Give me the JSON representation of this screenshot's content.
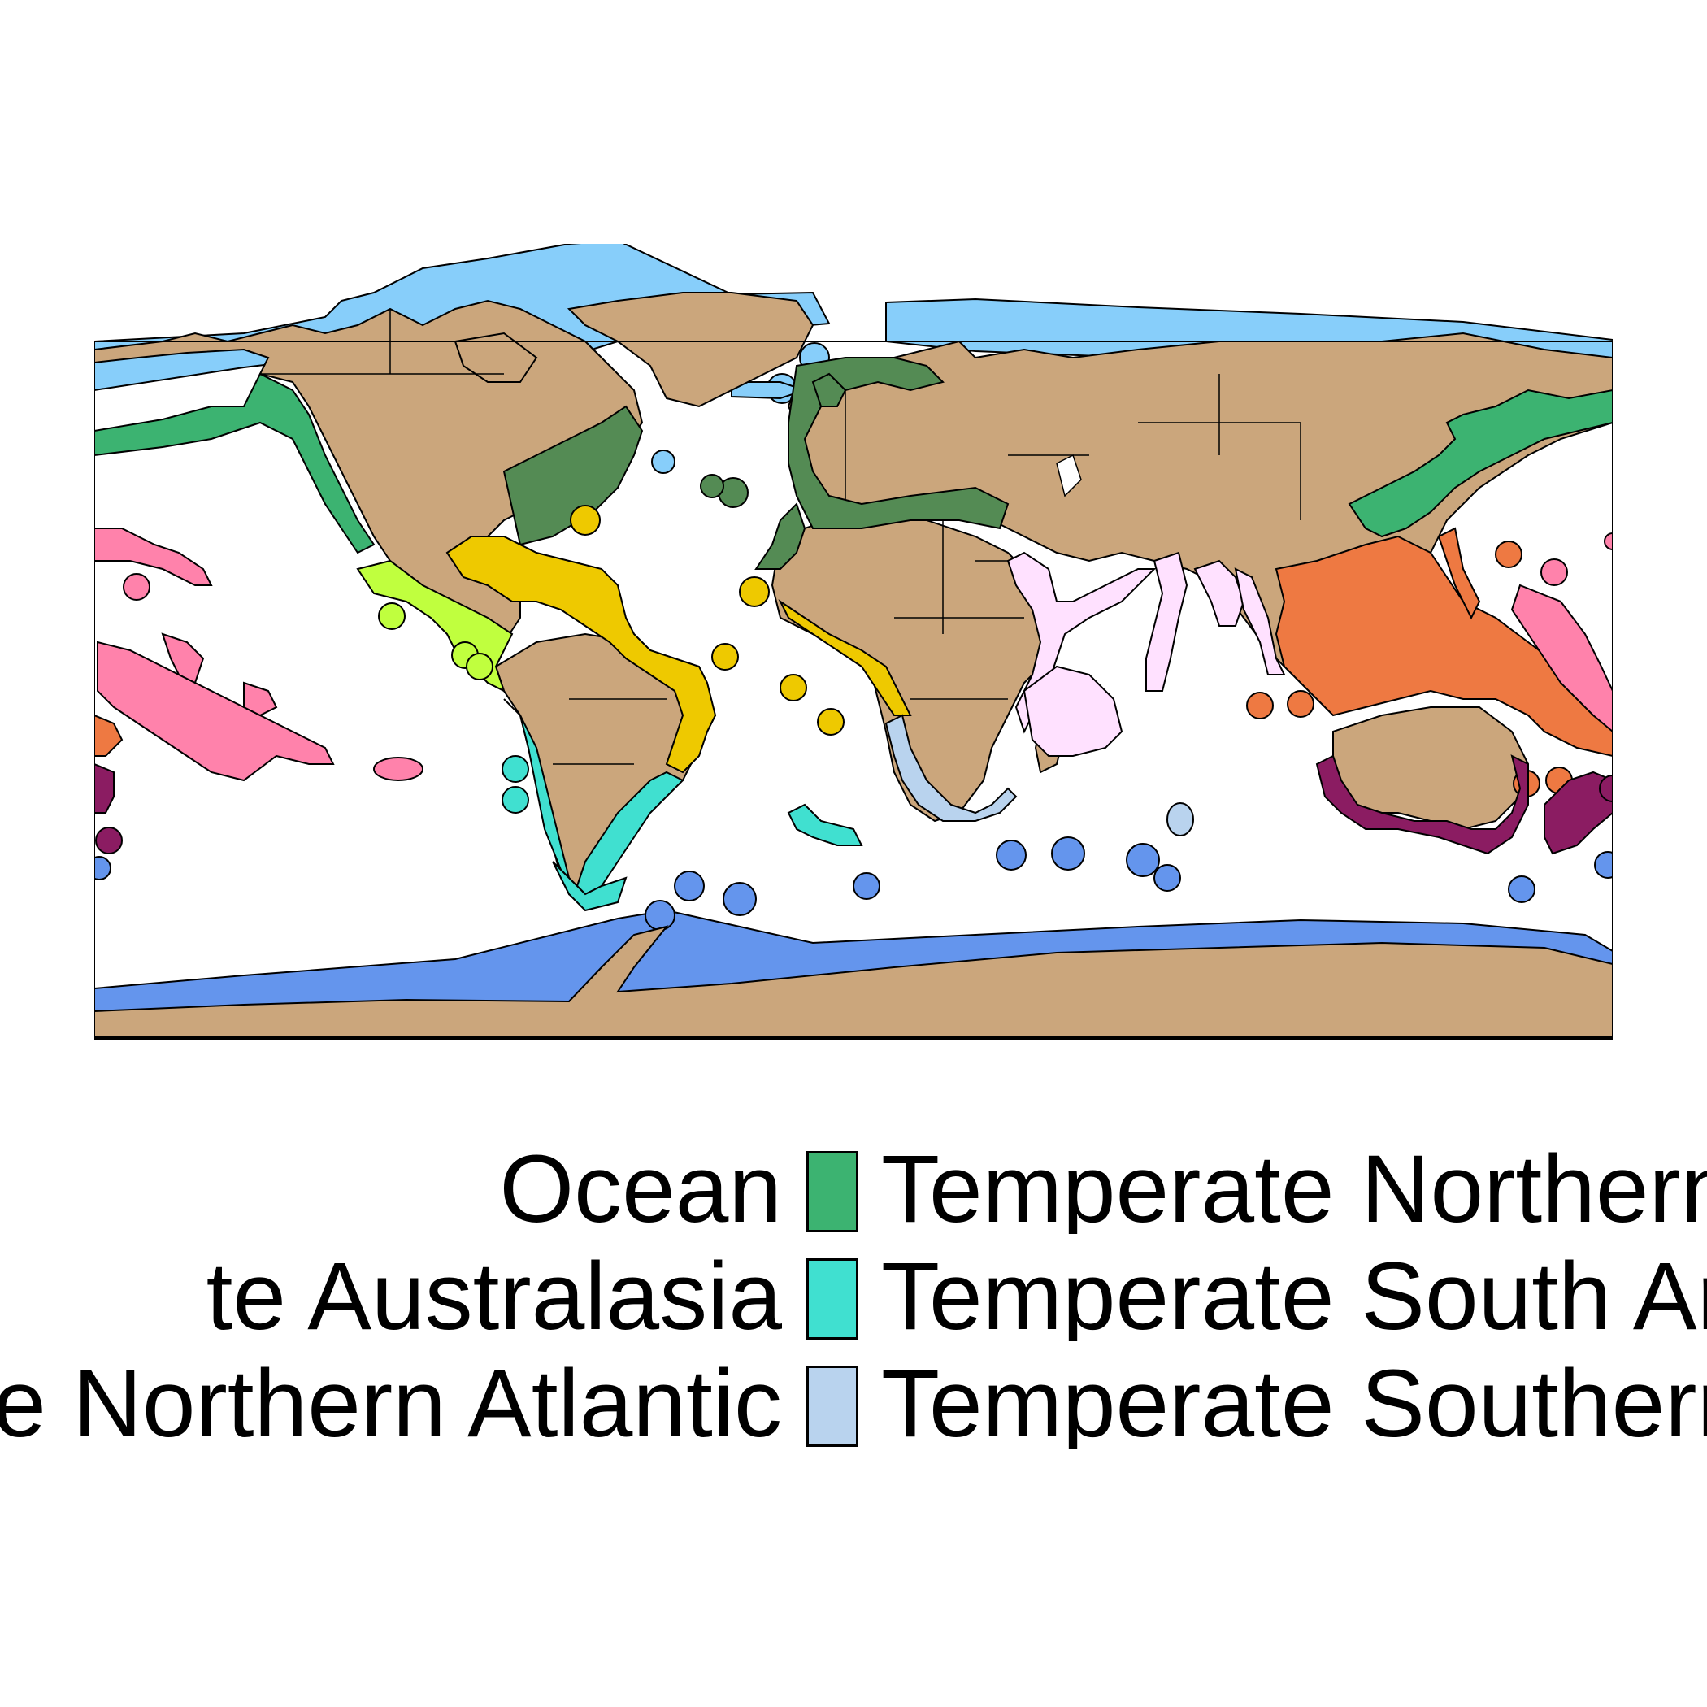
{
  "map": {
    "frame": "equirectangular world map",
    "colors": {
      "land": "#cba67c",
      "arctic": "#87cefa",
      "southern_ocean": "#6495ed",
      "temperate_northern_pacific": "#3cb371",
      "temperate_northern_atlantic": "#548b54",
      "tropical_atlantic": "#eec900",
      "tropical_eastern_pacific": "#c0ff3e",
      "central_indo_pacific": "#ee7942",
      "eastern_indo_pacific": "#ff82ab",
      "temperate_australasia": "#8b1c62",
      "western_indo_pacific": "#ffe1ff",
      "temperate_south_america": "#40e0d0",
      "temperate_southern_africa": "#b9d3ee",
      "inland_sea": "#ffffff"
    }
  },
  "legend": {
    "items": [
      {
        "label": "Ocean",
        "color": "#6495ed",
        "swatch": false
      },
      {
        "label": "te Australasia",
        "color": "#8b1c62",
        "swatch": false
      },
      {
        "label": "te Northern Atlantic",
        "color": "#548b54",
        "swatch": false
      },
      {
        "label": "Temperate Northern",
        "color": "#3cb371",
        "swatch": true
      },
      {
        "label": "Temperate South Ar",
        "color": "#40e0d0",
        "swatch": true
      },
      {
        "label": "Temperate Southern",
        "color": "#b9d3ee",
        "swatch": true
      }
    ]
  }
}
